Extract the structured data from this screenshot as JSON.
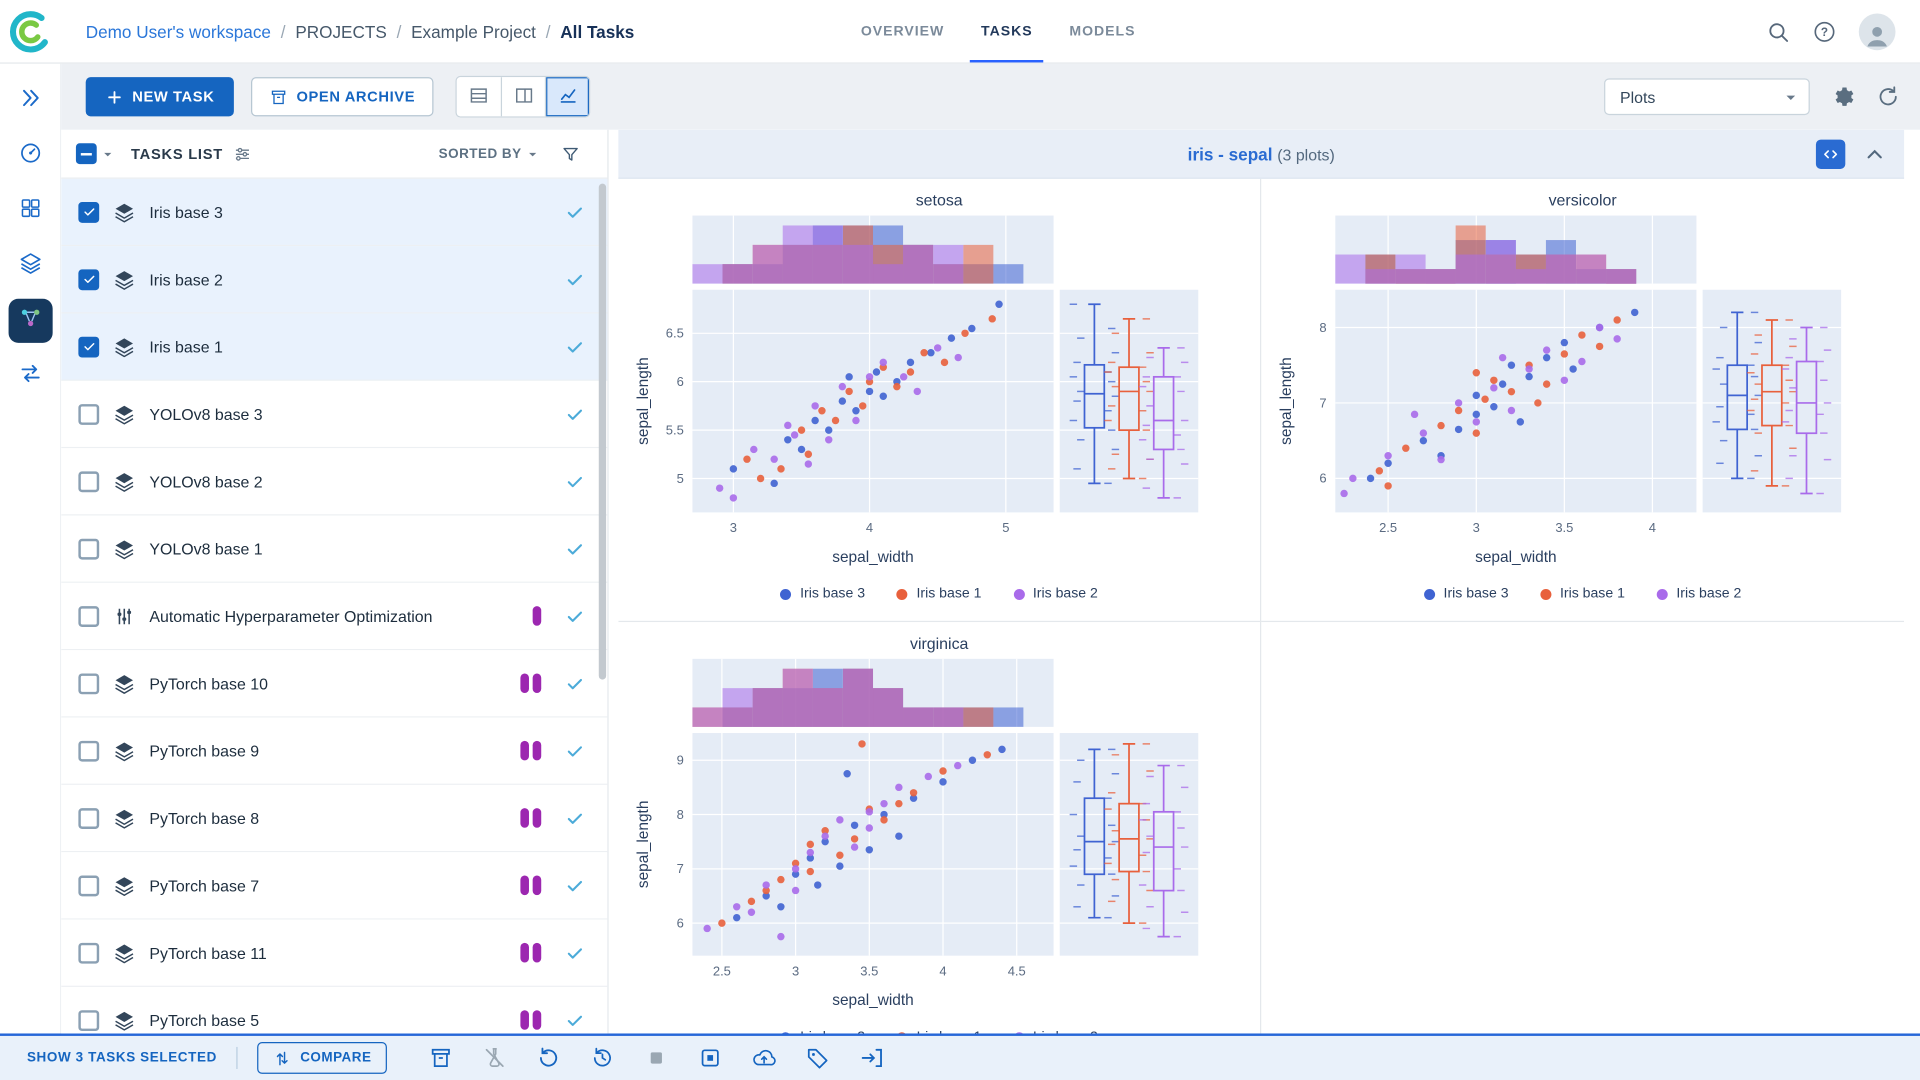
{
  "header": {
    "breadcrumbs": [
      {
        "label": "Demo User's workspace",
        "link": true
      },
      {
        "label": "PROJECTS"
      },
      {
        "label": "Example Project"
      },
      {
        "label": "All Tasks",
        "current": true
      }
    ],
    "tabs": [
      {
        "label": "OVERVIEW",
        "active": false
      },
      {
        "label": "TASKS",
        "active": true
      },
      {
        "label": "MODELS",
        "active": false
      }
    ]
  },
  "sidebar": {
    "items": [
      {
        "name": "expand",
        "icon": "expand",
        "active": false
      },
      {
        "name": "dashboard",
        "icon": "dashboard",
        "active": false
      },
      {
        "name": "projects",
        "icon": "projects",
        "active": false
      },
      {
        "name": "datasets",
        "icon": "datasets",
        "active": false
      },
      {
        "name": "pipelines",
        "icon": "pipelines",
        "active": true
      },
      {
        "name": "workers-queues",
        "icon": "workers",
        "active": false
      }
    ]
  },
  "toolbar": {
    "new_task": "NEW TASK",
    "open_archive": "OPEN ARCHIVE",
    "view_modes": [
      "table",
      "split",
      "charts"
    ],
    "active_view": "charts",
    "view_dropdown": "Plots"
  },
  "tasks_panel": {
    "title": "TASKS LIST",
    "sorted_by": "SORTED BY",
    "rows": [
      {
        "label": "Iris base 3",
        "type": "experiment",
        "checked": true,
        "pills": 0,
        "status": "completed"
      },
      {
        "label": "Iris base 2",
        "type": "experiment",
        "checked": true,
        "pills": 0,
        "status": "completed"
      },
      {
        "label": "Iris base 1",
        "type": "experiment",
        "checked": true,
        "pills": 0,
        "status": "completed"
      },
      {
        "label": "YOLOv8 base 3",
        "type": "experiment",
        "checked": false,
        "pills": 0,
        "status": "completed"
      },
      {
        "label": "YOLOv8 base 2",
        "type": "experiment",
        "checked": false,
        "pills": 0,
        "status": "completed"
      },
      {
        "label": "YOLOv8 base 1",
        "type": "experiment",
        "checked": false,
        "pills": 0,
        "status": "completed"
      },
      {
        "label": "Automatic Hyperparameter Optimization",
        "type": "hpo",
        "checked": false,
        "pills": 1,
        "status": "completed"
      },
      {
        "label": "PyTorch base 10",
        "type": "experiment",
        "checked": false,
        "pills": 2,
        "status": "completed"
      },
      {
        "label": "PyTorch base 9",
        "type": "experiment",
        "checked": false,
        "pills": 2,
        "status": "completed"
      },
      {
        "label": "PyTorch base 8",
        "type": "experiment",
        "checked": false,
        "pills": 2,
        "status": "completed"
      },
      {
        "label": "PyTorch base 7",
        "type": "experiment",
        "checked": false,
        "pills": 2,
        "status": "completed"
      },
      {
        "label": "PyTorch base 11",
        "type": "experiment",
        "checked": false,
        "pills": 2,
        "status": "completed"
      },
      {
        "label": "PyTorch base 5",
        "type": "experiment",
        "checked": false,
        "pills": 2,
        "status": "completed"
      }
    ]
  },
  "plots_panel": {
    "title": "iris - sepal",
    "count_label": "(3 plots)"
  },
  "footer": {
    "selected_label": "SHOW 3 TASKS SELECTED",
    "compare": "COMPARE",
    "actions": [
      {
        "name": "archive-button",
        "icon": "archive",
        "disabled": false
      },
      {
        "name": "enqueue-button",
        "icon": "enqueue",
        "disabled": true
      },
      {
        "name": "reset-button",
        "icon": "reset",
        "disabled": false
      },
      {
        "name": "revert-button",
        "icon": "history",
        "disabled": false
      },
      {
        "name": "abort-button",
        "icon": "stop",
        "disabled": true
      },
      {
        "name": "abort-all-children-button",
        "icon": "stopAll",
        "disabled": false
      },
      {
        "name": "publish-button",
        "icon": "cloudUp",
        "disabled": false
      },
      {
        "name": "tags-button",
        "icon": "tag",
        "disabled": false
      },
      {
        "name": "move-to-project-button",
        "icon": "moveTo",
        "disabled": false
      }
    ]
  },
  "colors": {
    "primary": "#1565c0",
    "accent": "#2962ff",
    "selected_row": "#e9f2fd",
    "model_pill": "#9c27b0",
    "status_check": "#4cabd9",
    "plot_bg": "#e5ecf6",
    "series_blue": "#3f63d2",
    "series_orange": "#e8603c",
    "series_purple": "#a96bea"
  },
  "chart_data": [
    {
      "type": "scatter",
      "title": "setosa",
      "xlabel": "sepal_width",
      "ylabel": "sepal_length",
      "xlim": [
        2.7,
        5.35
      ],
      "ylim": [
        4.65,
        6.95
      ],
      "xticks": [
        3,
        4,
        5
      ],
      "yticks": [
        5,
        5.5,
        6,
        6.5
      ],
      "marginal_top": "histogram",
      "marginal_right": "box",
      "legend_position": "bottom",
      "series": [
        {
          "name": "Iris base 3",
          "color": "#3f63d2",
          "points": [
            [
              3.0,
              5.1
            ],
            [
              3.3,
              4.95
            ],
            [
              3.4,
              5.4
            ],
            [
              3.5,
              5.3
            ],
            [
              3.6,
              5.6
            ],
            [
              3.7,
              5.5
            ],
            [
              3.8,
              5.8
            ],
            [
              3.85,
              6.05
            ],
            [
              3.9,
              5.7
            ],
            [
              4.0,
              5.9
            ],
            [
              4.05,
              6.1
            ],
            [
              4.1,
              5.85
            ],
            [
              4.2,
              6.0
            ],
            [
              4.3,
              6.2
            ],
            [
              4.45,
              6.3
            ],
            [
              4.6,
              6.45
            ],
            [
              4.75,
              6.55
            ],
            [
              4.95,
              6.8
            ]
          ]
        },
        {
          "name": "Iris base 1",
          "color": "#e8603c",
          "points": [
            [
              3.1,
              5.2
            ],
            [
              3.35,
              5.1
            ],
            [
              3.5,
              5.5
            ],
            [
              3.55,
              5.25
            ],
            [
              3.65,
              5.7
            ],
            [
              3.75,
              5.6
            ],
            [
              3.85,
              5.9
            ],
            [
              3.95,
              5.75
            ],
            [
              4.0,
              6.0
            ],
            [
              4.1,
              6.15
            ],
            [
              4.2,
              5.95
            ],
            [
              4.3,
              6.1
            ],
            [
              4.4,
              6.3
            ],
            [
              4.55,
              6.2
            ],
            [
              4.7,
              6.5
            ],
            [
              4.9,
              6.65
            ],
            [
              3.2,
              5.0
            ]
          ]
        },
        {
          "name": "Iris base 2",
          "color": "#a96bea",
          "points": [
            [
              2.9,
              4.9
            ],
            [
              3.15,
              5.3
            ],
            [
              3.3,
              5.2
            ],
            [
              3.45,
              5.45
            ],
            [
              3.55,
              5.15
            ],
            [
              3.6,
              5.75
            ],
            [
              3.7,
              5.4
            ],
            [
              3.8,
              5.95
            ],
            [
              3.9,
              5.6
            ],
            [
              4.0,
              6.05
            ],
            [
              4.1,
              6.2
            ],
            [
              4.25,
              6.05
            ],
            [
              4.35,
              5.9
            ],
            [
              4.5,
              6.35
            ],
            [
              4.65,
              6.25
            ],
            [
              3.0,
              4.8
            ],
            [
              3.4,
              5.55
            ]
          ]
        }
      ]
    },
    {
      "type": "scatter",
      "title": "versicolor",
      "xlabel": "sepal_width",
      "ylabel": "sepal_length",
      "xlim": [
        2.2,
        4.25
      ],
      "ylim": [
        5.55,
        8.5
      ],
      "xticks": [
        2.5,
        3,
        3.5,
        4
      ],
      "yticks": [
        6,
        7,
        8
      ],
      "marginal_top": "histogram",
      "marginal_right": "box",
      "legend_position": "bottom",
      "series": [
        {
          "name": "Iris base 3",
          "color": "#3f63d2",
          "points": [
            [
              2.5,
              6.2
            ],
            [
              2.7,
              6.5
            ],
            [
              2.8,
              6.3
            ],
            [
              2.9,
              6.65
            ],
            [
              3.0,
              6.85
            ],
            [
              3.0,
              7.1
            ],
            [
              3.1,
              6.95
            ],
            [
              3.15,
              7.25
            ],
            [
              3.2,
              7.5
            ],
            [
              3.3,
              7.35
            ],
            [
              3.4,
              7.6
            ],
            [
              3.5,
              7.8
            ],
            [
              3.55,
              7.45
            ],
            [
              3.7,
              8.0
            ],
            [
              3.9,
              8.2
            ],
            [
              2.4,
              6.0
            ],
            [
              3.25,
              6.75
            ]
          ]
        },
        {
          "name": "Iris base 1",
          "color": "#e8603c",
          "points": [
            [
              2.45,
              6.1
            ],
            [
              2.6,
              6.4
            ],
            [
              2.8,
              6.7
            ],
            [
              2.9,
              6.9
            ],
            [
              3.0,
              6.6
            ],
            [
              3.05,
              7.05
            ],
            [
              3.1,
              7.3
            ],
            [
              3.2,
              7.15
            ],
            [
              3.3,
              7.5
            ],
            [
              3.4,
              7.25
            ],
            [
              3.5,
              7.65
            ],
            [
              3.6,
              7.9
            ],
            [
              3.7,
              7.75
            ],
            [
              3.8,
              8.1
            ],
            [
              2.5,
              5.9
            ],
            [
              3.0,
              7.4
            ],
            [
              3.35,
              7.0
            ]
          ]
        },
        {
          "name": "Iris base 2",
          "color": "#a96bea",
          "points": [
            [
              2.3,
              6.0
            ],
            [
              2.5,
              6.3
            ],
            [
              2.7,
              6.6
            ],
            [
              2.8,
              6.25
            ],
            [
              2.9,
              7.0
            ],
            [
              3.0,
              6.75
            ],
            [
              3.1,
              7.2
            ],
            [
              3.2,
              6.9
            ],
            [
              3.3,
              7.45
            ],
            [
              3.4,
              7.7
            ],
            [
              3.5,
              7.3
            ],
            [
              3.6,
              7.55
            ],
            [
              3.7,
              8.0
            ],
            [
              2.65,
              6.85
            ],
            [
              3.8,
              7.85
            ],
            [
              2.25,
              5.8
            ],
            [
              3.15,
              7.6
            ]
          ]
        }
      ]
    },
    {
      "type": "scatter",
      "title": "virginica",
      "xlabel": "sepal_width",
      "ylabel": "sepal_length",
      "xlim": [
        2.3,
        4.75
      ],
      "ylim": [
        5.4,
        9.5
      ],
      "xticks": [
        2.5,
        3,
        3.5,
        4,
        4.5
      ],
      "yticks": [
        6,
        7,
        8,
        9
      ],
      "marginal_top": "histogram",
      "marginal_right": "box",
      "legend_position": "bottom",
      "series": [
        {
          "name": "Iris base 3",
          "color": "#3f63d2",
          "points": [
            [
              2.6,
              6.1
            ],
            [
              2.8,
              6.5
            ],
            [
              3.0,
              6.9
            ],
            [
              3.1,
              7.2
            ],
            [
              3.2,
              7.5
            ],
            [
              3.3,
              7.05
            ],
            [
              3.4,
              7.8
            ],
            [
              3.5,
              7.35
            ],
            [
              3.6,
              8.0
            ],
            [
              3.7,
              7.6
            ],
            [
              3.8,
              8.3
            ],
            [
              4.0,
              8.6
            ],
            [
              4.2,
              9.0
            ],
            [
              4.4,
              9.2
            ],
            [
              2.9,
              6.3
            ],
            [
              3.35,
              8.75
            ],
            [
              3.15,
              6.7
            ]
          ]
        },
        {
          "name": "Iris base 1",
          "color": "#e8603c",
          "points": [
            [
              2.5,
              6.0
            ],
            [
              2.7,
              6.4
            ],
            [
              2.9,
              6.8
            ],
            [
              3.0,
              7.1
            ],
            [
              3.1,
              7.45
            ],
            [
              3.2,
              7.7
            ],
            [
              3.3,
              7.25
            ],
            [
              3.4,
              7.55
            ],
            [
              3.5,
              8.1
            ],
            [
              3.6,
              7.9
            ],
            [
              3.8,
              8.4
            ],
            [
              4.0,
              8.8
            ],
            [
              4.3,
              9.1
            ],
            [
              2.8,
              6.6
            ],
            [
              3.7,
              8.2
            ],
            [
              3.1,
              6.95
            ],
            [
              3.45,
              9.3
            ]
          ]
        },
        {
          "name": "Iris base 2",
          "color": "#a96bea",
          "points": [
            [
              2.4,
              5.9
            ],
            [
              2.6,
              6.3
            ],
            [
              2.8,
              6.7
            ],
            [
              3.0,
              7.0
            ],
            [
              3.1,
              7.3
            ],
            [
              3.2,
              7.6
            ],
            [
              3.3,
              7.9
            ],
            [
              3.4,
              7.4
            ],
            [
              3.5,
              7.75
            ],
            [
              3.6,
              8.2
            ],
            [
              3.7,
              8.5
            ],
            [
              3.9,
              8.7
            ],
            [
              4.1,
              8.9
            ],
            [
              2.7,
              6.2
            ],
            [
              3.0,
              6.6
            ],
            [
              3.5,
              8.05
            ],
            [
              2.9,
              5.75
            ]
          ]
        }
      ]
    }
  ]
}
